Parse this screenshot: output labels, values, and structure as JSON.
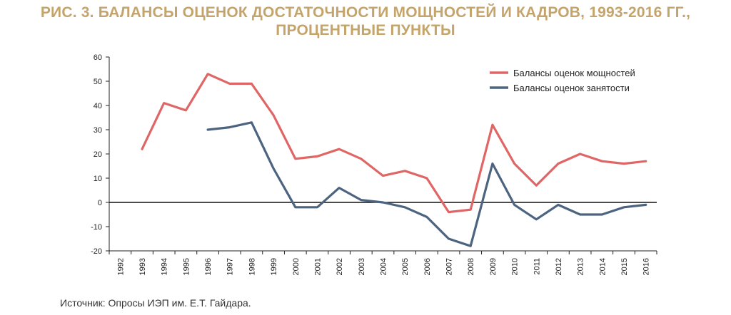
{
  "title_line1": "РИС. 3. БАЛАНСЫ ОЦЕНОК ДОСТАТОЧНОСТИ МОЩНОСТЕЙ И КАДРОВ, 1993-2016 ГГ.,",
  "title_line2": "ПРОЦЕНТНЫЕ ПУНКТЫ",
  "source": "Источник: Опросы ИЭП им. Е.Т. Гайдара.",
  "chart_data": {
    "type": "line",
    "categories": [
      "1992",
      "1993",
      "1994",
      "1995",
      "1996",
      "1997",
      "1998",
      "1999",
      "2000",
      "2001",
      "2002",
      "2003",
      "2004",
      "2005",
      "2006",
      "2007",
      "2008",
      "2009",
      "2010",
      "2011",
      "2012",
      "2013",
      "2014",
      "2015",
      "2016"
    ],
    "ylim": [
      -20,
      60
    ],
    "yticks": [
      -20,
      -10,
      0,
      10,
      20,
      30,
      40,
      50,
      60
    ],
    "grid": false,
    "legend_position": "top-right",
    "series": [
      {
        "name": "Балансы оценок мощностей",
        "color": "#e06666",
        "values": [
          null,
          22,
          41,
          38,
          53,
          49,
          49,
          36,
          18,
          19,
          22,
          18,
          11,
          13,
          10,
          -4,
          -3,
          32,
          16,
          7,
          16,
          20,
          17,
          16,
          17
        ]
      },
      {
        "name": "Балансы оценок занятости",
        "color": "#4d6480",
        "values": [
          null,
          null,
          null,
          null,
          30,
          31,
          33,
          14,
          -2,
          -2,
          6,
          1,
          0,
          -2,
          -6,
          -15,
          -18,
          16,
          -1,
          -7,
          -1,
          -5,
          -5,
          -2,
          -1
        ]
      }
    ]
  }
}
